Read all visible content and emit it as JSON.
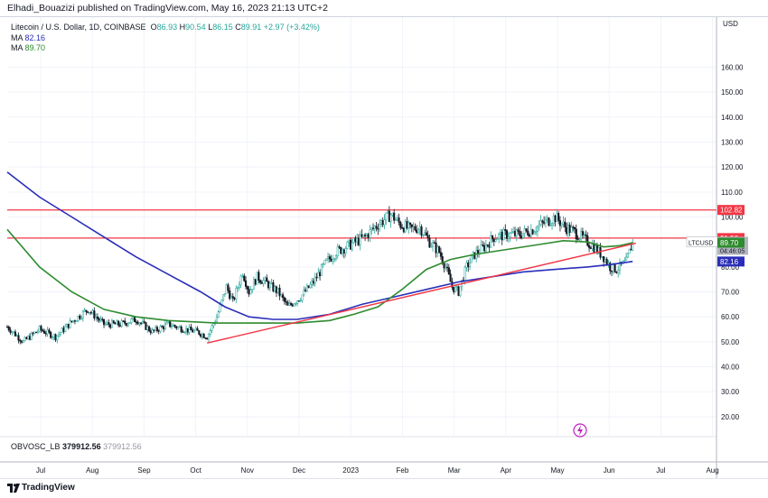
{
  "header": {
    "published_by": "Elhadi_Bouazizi published on TradingView.com, May 16, 2023 21:13 UTC+2"
  },
  "legend": {
    "symbol": "Litecoin / U.S. Dollar, 1D, COINBASE",
    "open_label": "O",
    "open": "86.93",
    "high_label": "H",
    "high": "90.54",
    "low_label": "L",
    "low": "86.15",
    "close_label": "C",
    "close": "89.91",
    "change": "+2.97 (+3.42%)",
    "ma1_label": "MA",
    "ma1_value": "82.16",
    "ma2_label": "MA",
    "ma2_value": "89.70",
    "obv_label": "OBVOSC_LB",
    "obv_value": "379912.56",
    "obv_value2": "379912.56"
  },
  "footer": {
    "brand": "TradingView"
  },
  "colors": {
    "up": "#26a69a",
    "down": "#131722",
    "ma1": "#2a2eb8",
    "ma2": "#2e8b2e",
    "levels": "#f23645",
    "price_tag": "#b2b5be"
  },
  "chart_data": {
    "type": "candlestick",
    "symbol": "LTCUSD",
    "interval": "1D",
    "y_axis": {
      "unit": "USD",
      "ticks": [
        20,
        30,
        40,
        50,
        60,
        70,
        80,
        100,
        110,
        120,
        130,
        140,
        150,
        160
      ],
      "ylim": [
        12,
        175
      ]
    },
    "x_axis": {
      "ticks": [
        "Jul",
        "Aug",
        "Sep",
        "Oct",
        "Nov",
        "Dec",
        "2023",
        "Feb",
        "Mar",
        "Apr",
        "May",
        "Jun",
        "Jul",
        "Aug"
      ]
    },
    "price_tags": [
      {
        "label": "",
        "value": "102.82",
        "price": 102.82,
        "color": "#f23645"
      },
      {
        "label": "",
        "value": "91.56",
        "price": 91.56,
        "color": "#f23645"
      },
      {
        "label": "LTCUSD",
        "value": "89.91",
        "extra": "04:46:05",
        "price": 89.91,
        "color": "#b2b5be"
      },
      {
        "label": "",
        "value": "89.70",
        "price": 89.7,
        "color": "#2e8b2e"
      },
      {
        "label": "",
        "value": "82.16",
        "price": 82.16,
        "color": "#2a2eb8"
      }
    ],
    "horizontal_levels": [
      102.82,
      91.56
    ],
    "trendline": {
      "start": {
        "t": 124,
        "price": 49.5
      },
      "end": {
        "t": 390,
        "price": 89.5
      }
    },
    "ma_fast": {
      "name": "MA",
      "points": [
        [
          0,
          95
        ],
        [
          20,
          80
        ],
        [
          40,
          70
        ],
        [
          60,
          63
        ],
        [
          80,
          60
        ],
        [
          100,
          58.5
        ],
        [
          130,
          57.5
        ],
        [
          160,
          57.5
        ],
        [
          180,
          57.5
        ],
        [
          200,
          58.5
        ],
        [
          215,
          61
        ],
        [
          230,
          64
        ],
        [
          245,
          71
        ],
        [
          260,
          79
        ],
        [
          275,
          83
        ],
        [
          290,
          85
        ],
        [
          310,
          87
        ],
        [
          330,
          89
        ],
        [
          345,
          90.5
        ],
        [
          360,
          90
        ],
        [
          370,
          88
        ],
        [
          380,
          88.5
        ],
        [
          388,
          89.7
        ]
      ]
    },
    "ma_slow": {
      "name": "MA",
      "points": [
        [
          0,
          118
        ],
        [
          20,
          108
        ],
        [
          40,
          100
        ],
        [
          60,
          92
        ],
        [
          80,
          84
        ],
        [
          100,
          77
        ],
        [
          120,
          70
        ],
        [
          135,
          64
        ],
        [
          150,
          60
        ],
        [
          165,
          59
        ],
        [
          180,
          59
        ],
        [
          200,
          61
        ],
        [
          220,
          65
        ],
        [
          240,
          68
        ],
        [
          260,
          71
        ],
        [
          280,
          74
        ],
        [
          300,
          76
        ],
        [
          320,
          78
        ],
        [
          340,
          79
        ],
        [
          360,
          80
        ],
        [
          375,
          81
        ],
        [
          388,
          82.2
        ]
      ]
    },
    "price_path": [
      [
        0,
        56
      ],
      [
        10,
        50
      ],
      [
        20,
        55
      ],
      [
        30,
        52
      ],
      [
        40,
        58
      ],
      [
        50,
        63
      ],
      [
        60,
        57
      ],
      [
        70,
        57
      ],
      [
        80,
        59
      ],
      [
        90,
        54
      ],
      [
        100,
        57
      ],
      [
        110,
        55
      ],
      [
        118,
        54
      ],
      [
        124,
        52
      ],
      [
        130,
        60
      ],
      [
        136,
        72
      ],
      [
        140,
        66
      ],
      [
        146,
        78
      ],
      [
        150,
        70
      ],
      [
        155,
        76
      ],
      [
        160,
        74
      ],
      [
        168,
        70
      ],
      [
        174,
        64
      ],
      [
        182,
        68
      ],
      [
        190,
        74
      ],
      [
        198,
        82
      ],
      [
        204,
        86
      ],
      [
        210,
        88
      ],
      [
        216,
        90
      ],
      [
        222,
        92
      ],
      [
        228,
        96
      ],
      [
        234,
        99
      ],
      [
        238,
        101
      ],
      [
        244,
        97
      ],
      [
        250,
        95
      ],
      [
        256,
        96
      ],
      [
        262,
        90
      ],
      [
        268,
        86
      ],
      [
        272,
        80
      ],
      [
        276,
        72
      ],
      [
        280,
        70
      ],
      [
        285,
        80
      ],
      [
        290,
        85
      ],
      [
        296,
        88
      ],
      [
        302,
        92
      ],
      [
        310,
        93
      ],
      [
        318,
        93
      ],
      [
        326,
        95
      ],
      [
        334,
        98
      ],
      [
        340,
        100
      ],
      [
        346,
        96
      ],
      [
        352,
        94
      ],
      [
        358,
        91
      ],
      [
        364,
        88
      ],
      [
        370,
        84
      ],
      [
        374,
        80
      ],
      [
        378,
        79
      ],
      [
        384,
        82
      ],
      [
        388,
        89.9
      ]
    ]
  }
}
